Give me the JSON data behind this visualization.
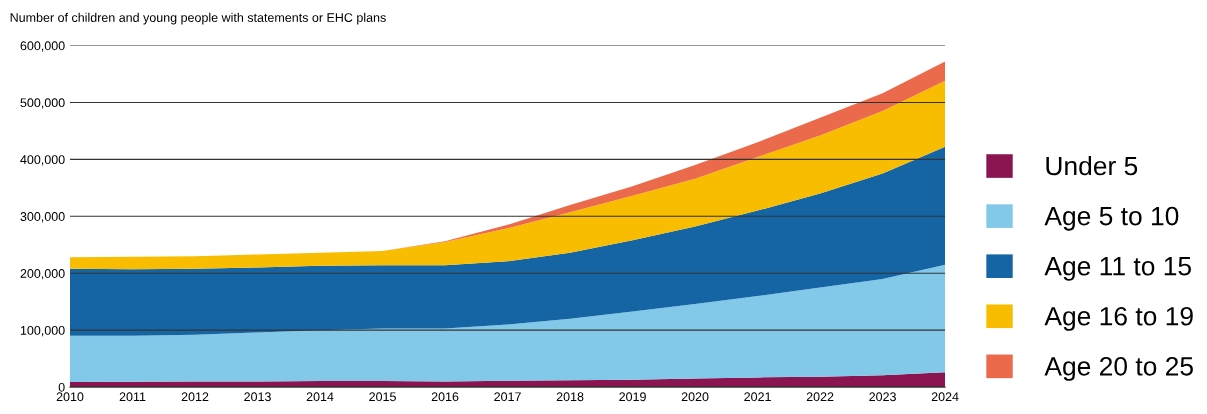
{
  "chart_data": {
    "type": "area",
    "stacked": true,
    "title": "Number of children and young people with statements or EHC plans",
    "x": [
      2010,
      2011,
      2012,
      2013,
      2014,
      2015,
      2016,
      2017,
      2018,
      2019,
      2020,
      2021,
      2022,
      2023,
      2024
    ],
    "series": [
      {
        "name": "Under 5",
        "color": "#8b1550",
        "values": [
          9000,
          9500,
          10000,
          10000,
          10500,
          10500,
          10000,
          11000,
          12000,
          13000,
          15000,
          17000,
          18000,
          21000,
          26000
        ]
      },
      {
        "name": "Age 5 to 10",
        "color": "#82c8e8",
        "values": [
          81000,
          80500,
          82000,
          86000,
          89500,
          92500,
          93000,
          99000,
          108000,
          120000,
          131000,
          143000,
          157000,
          169000,
          189000
        ]
      },
      {
        "name": "Age 11 to 15",
        "color": "#1565a5",
        "values": [
          118000,
          117000,
          116000,
          114000,
          113000,
          111000,
          111000,
          111000,
          116000,
          125000,
          136000,
          150000,
          165000,
          185000,
          207000
        ]
      },
      {
        "name": "Age 16 to 19",
        "color": "#f9bd00",
        "values": [
          20000,
          22000,
          22000,
          23000,
          23000,
          25000,
          41000,
          58000,
          71000,
          78000,
          84000,
          94000,
          102000,
          110000,
          116000
        ]
      },
      {
        "name": "Age 20 to 25",
        "color": "#ec6a4c",
        "values": [
          0,
          0,
          0,
          0,
          0,
          0,
          1000,
          6000,
          13000,
          17000,
          24000,
          26000,
          31000,
          31000,
          34000
        ]
      }
    ],
    "xlim": [
      2010,
      2024
    ],
    "xticks": [
      2010,
      2011,
      2012,
      2013,
      2014,
      2015,
      2016,
      2017,
      2018,
      2019,
      2020,
      2021,
      2022,
      2023,
      2024
    ],
    "ylim": [
      0,
      600000
    ],
    "yticks": [
      {
        "value": 0,
        "label": "0"
      },
      {
        "value": 100000,
        "label": "100,000"
      },
      {
        "value": 200000,
        "label": "200,000"
      },
      {
        "value": 300000,
        "label": "300,000"
      },
      {
        "value": 400000,
        "label": "400,000"
      },
      {
        "value": 500000,
        "label": "500,000"
      },
      {
        "value": 600000,
        "label": "600,000"
      }
    ],
    "grid": "y",
    "legend": "right"
  }
}
